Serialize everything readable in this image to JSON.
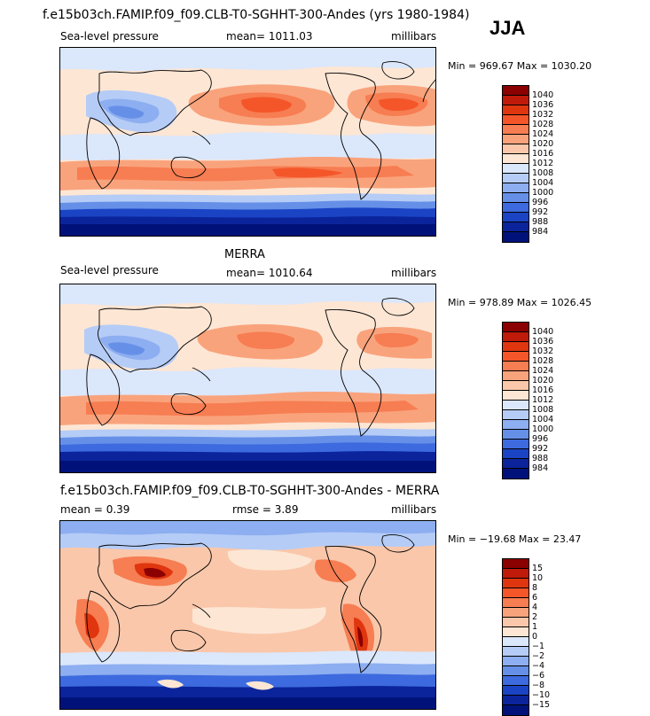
{
  "header": {
    "title": "f.e15b03ch.FAMIP.f09_f09.CLB-T0-SGHHT-300-Andes (yrs 1980-1984)",
    "season": "JJA"
  },
  "panels": [
    {
      "title": "",
      "variable": "Sea-level pressure",
      "stat": "mean= 1011.03",
      "units": "millibars",
      "minmax": "Min = 969.67 Max = 1030.20"
    },
    {
      "title": "MERRA",
      "variable": "Sea-level pressure",
      "stat": "mean= 1010.64",
      "units": "millibars",
      "minmax": "Min = 978.89 Max = 1026.45"
    },
    {
      "title": "f.e15b03ch.FAMIP.f09_f09.CLB-T0-SGHHT-300-Andes - MERRA",
      "variable": "mean =     0.39",
      "stat": "rmse =     3.89",
      "units": "millibars",
      "minmax": "Min = −19.68 Max =   23.47"
    }
  ],
  "colorbars": {
    "pressure": {
      "labels": [
        "1040",
        "1036",
        "1032",
        "1028",
        "1024",
        "1020",
        "1016",
        "1012",
        "1008",
        "1004",
        "1000",
        "996",
        "992",
        "988",
        "984"
      ],
      "colors": [
        "#8b0000",
        "#c01a0a",
        "#e0360f",
        "#f4562a",
        "#f77d52",
        "#f9a37c",
        "#fac7aa",
        "#fde6d4",
        "#dbe7fb",
        "#b5ccf6",
        "#8daef0",
        "#6690e8",
        "#3d6ade",
        "#1a44c4",
        "#0b249b",
        "#00127a"
      ]
    },
    "difference": {
      "labels": [
        "15",
        "10",
        "8",
        "6",
        "4",
        "2",
        "1",
        "0",
        "−1",
        "−2",
        "−4",
        "−6",
        "−8",
        "−10",
        "−15"
      ],
      "colors": [
        "#8b0000",
        "#c01a0a",
        "#e0360f",
        "#f4562a",
        "#f77d52",
        "#f9a37c",
        "#fac7aa",
        "#fde6d4",
        "#dbe7fb",
        "#b5ccf6",
        "#8daef0",
        "#6690e8",
        "#3d6ade",
        "#1a44c4",
        "#0b249b",
        "#00127a"
      ]
    }
  }
}
